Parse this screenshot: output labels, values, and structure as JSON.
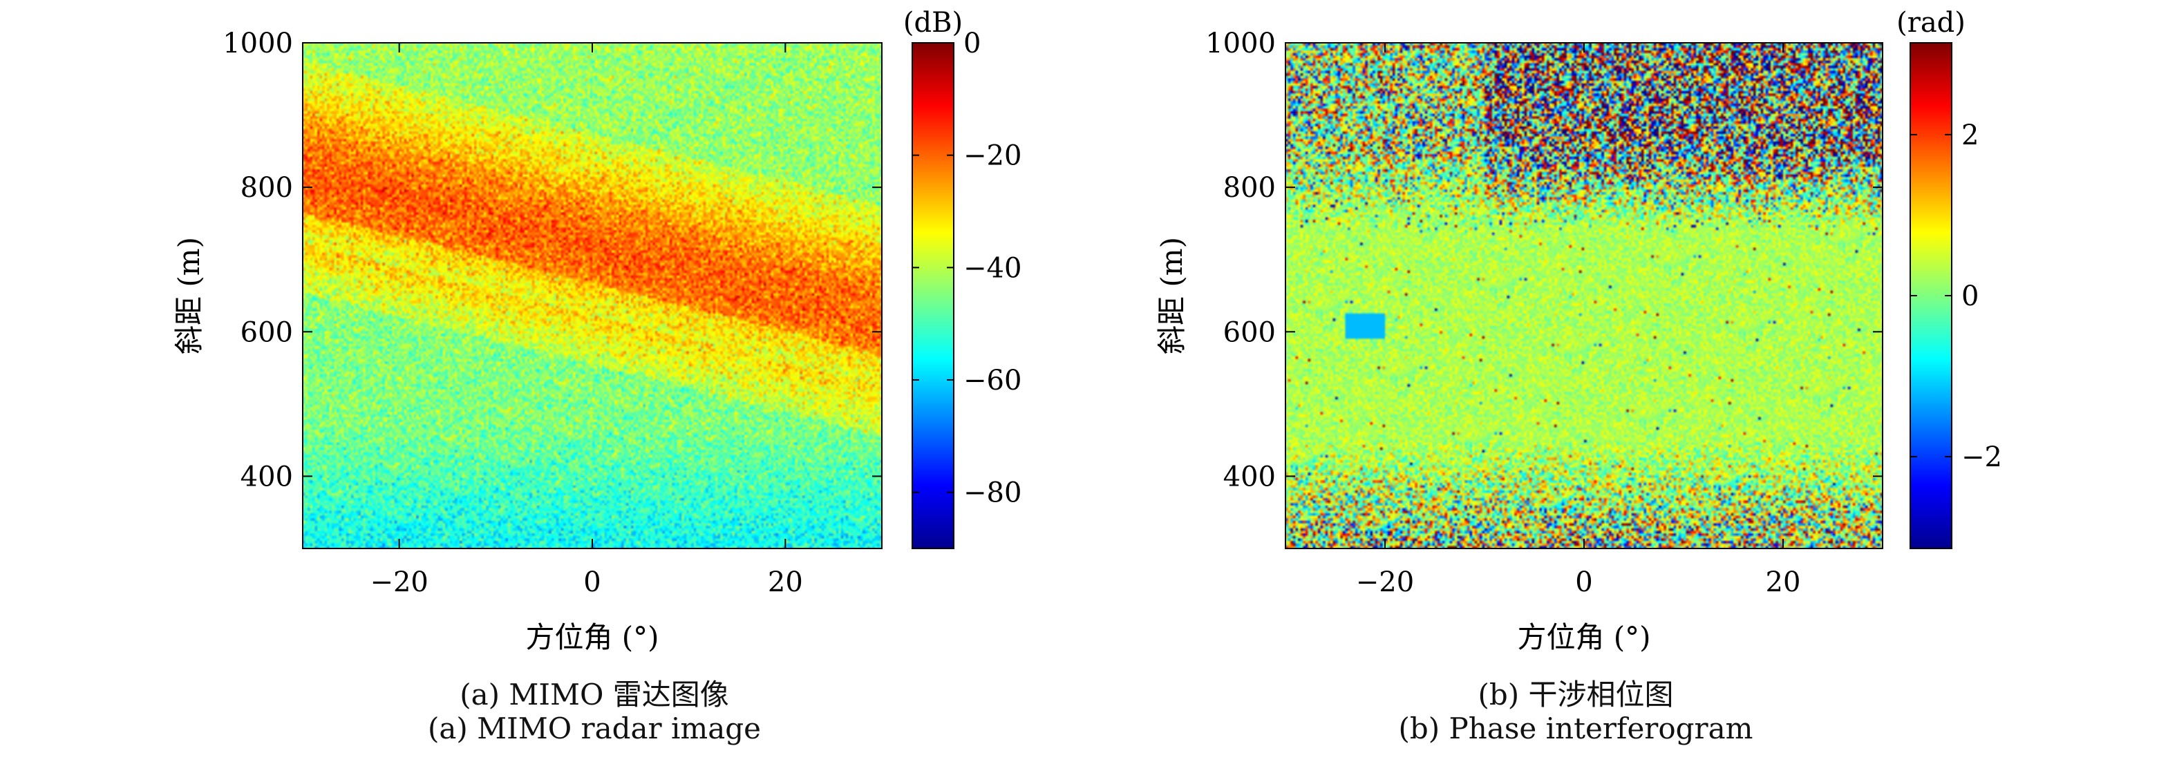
{
  "figure": {
    "panel_a": {
      "caption_zh": "(a) MIMO 雷达图像",
      "caption_en": "(a) MIMO radar image"
    },
    "panel_b": {
      "caption_zh": "(b) 干涉相位图",
      "caption_en": "(b) Phase interferogram"
    }
  },
  "chart_data": [
    {
      "type": "heatmap",
      "title": "",
      "xlabel": "方位角 (°)",
      "ylabel": "斜距 (m)",
      "xlim": [
        -30,
        30
      ],
      "ylim": [
        300,
        1000
      ],
      "xticks": [
        -20,
        0,
        20
      ],
      "yticks": [
        400,
        600,
        800,
        1000
      ],
      "xtick_labels": [
        "−20",
        "0",
        "20"
      ],
      "ytick_labels": [
        "400",
        "600",
        "800",
        "1000"
      ],
      "colorbar": {
        "label": "(dB)",
        "range": [
          -90,
          0
        ],
        "ticks": [
          0,
          -20,
          -40,
          -60,
          -80
        ],
        "tick_labels": [
          "0",
          "−20",
          "−40",
          "−60",
          "−80"
        ],
        "colormap": "jet"
      },
      "description_values": [
        {
          "range_m": [
            540,
            860
          ],
          "level_db": -20,
          "note": "strong diagonal return band"
        },
        {
          "range_m": [
            300,
            450
          ],
          "level_db": -55,
          "note": "low return near bottom"
        },
        {
          "range_m": [
            880,
            1000
          ],
          "level_db": -45,
          "note": "background"
        }
      ]
    },
    {
      "type": "heatmap",
      "title": "",
      "xlabel": "方位角 (°)",
      "ylabel": "斜距 (m)",
      "xlim": [
        -30,
        30
      ],
      "ylim": [
        300,
        1000
      ],
      "xticks": [
        -20,
        0,
        20
      ],
      "yticks": [
        400,
        600,
        800,
        1000
      ],
      "xtick_labels": [
        "−20",
        "0",
        "20"
      ],
      "ytick_labels": [
        "400",
        "600",
        "800",
        "1000"
      ],
      "colorbar": {
        "label": "(rad)",
        "range": [
          -3.14,
          3.14
        ],
        "ticks": [
          2,
          0,
          -2
        ],
        "tick_labels": [
          "2",
          "0",
          "−2"
        ],
        "colormap": "jet"
      },
      "description_values": [
        {
          "range_m": [
            450,
            740
          ],
          "level_rad": 0.3,
          "note": "smooth low-phase region"
        },
        {
          "range_m": [
            740,
            1000
          ],
          "level_rad": 0,
          "note": "noisy, phase spread ±3"
        },
        {
          "range_m": [
            300,
            450
          ],
          "level_rad": 0,
          "note": "noisy near bottom"
        }
      ]
    }
  ],
  "colors": {
    "axis": "#000000",
    "background": "#ffffff"
  }
}
